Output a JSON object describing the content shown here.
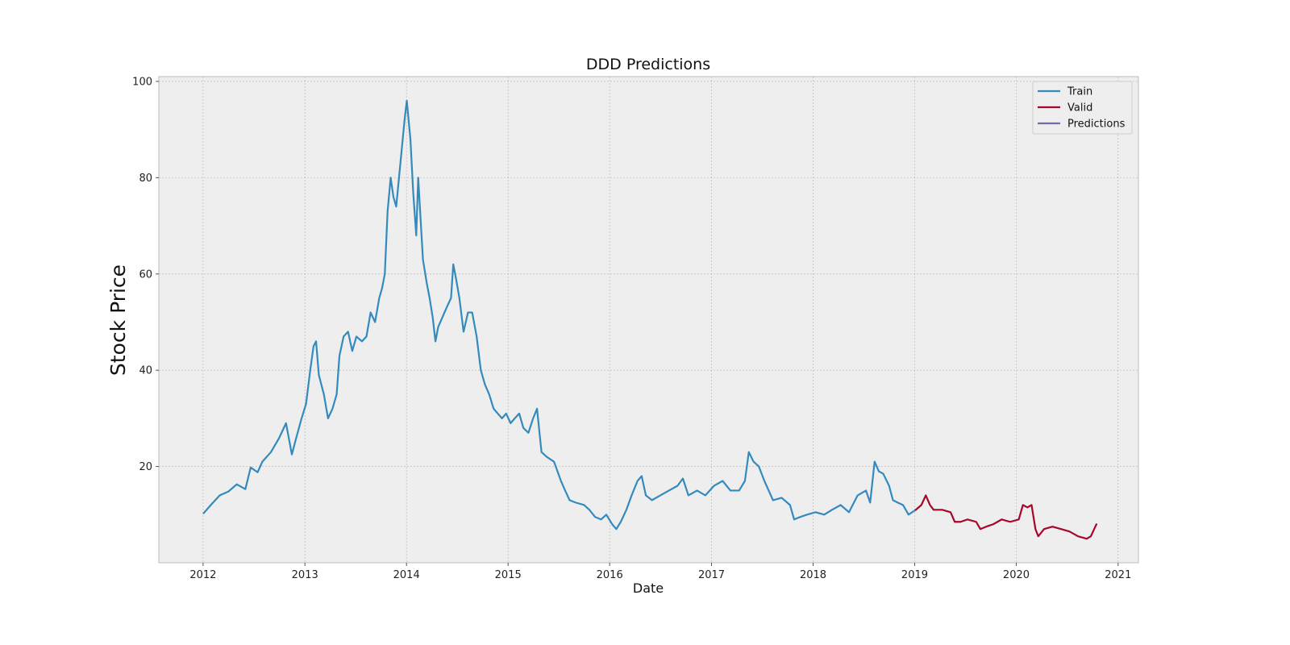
{
  "chart_data": {
    "type": "line",
    "title": "DDD Predictions",
    "xlabel": "Date",
    "ylabel": "Stock Price",
    "x_axis": "date",
    "xlim": [
      "2011-07-26",
      "2021-03-15"
    ],
    "ylim": [
      0,
      101
    ],
    "xticks": [
      "2012",
      "2013",
      "2014",
      "2015",
      "2016",
      "2017",
      "2018",
      "2019",
      "2020",
      "2021"
    ],
    "yticks": [
      20,
      40,
      60,
      80,
      100
    ],
    "grid": true,
    "legend_position": "top-right",
    "series": [
      {
        "name": "Train",
        "color": "#348abd",
        "points": [
          [
            "2012-01-03",
            10.3
          ],
          [
            "2012-02-01",
            12.2
          ],
          [
            "2012-03-01",
            14.0
          ],
          [
            "2012-04-01",
            14.8
          ],
          [
            "2012-05-01",
            16.3
          ],
          [
            "2012-06-01",
            15.3
          ],
          [
            "2012-06-20",
            19.8
          ],
          [
            "2012-07-15",
            18.8
          ],
          [
            "2012-08-01",
            21.0
          ],
          [
            "2012-09-01",
            23.0
          ],
          [
            "2012-10-01",
            26.0
          ],
          [
            "2012-10-25",
            29.0
          ],
          [
            "2012-11-15",
            22.5
          ],
          [
            "2012-12-01",
            26.0
          ],
          [
            "2012-12-20",
            30.0
          ],
          [
            "2013-01-05",
            33.0
          ],
          [
            "2013-01-20",
            40.0
          ],
          [
            "2013-02-01",
            45.0
          ],
          [
            "2013-02-10",
            46.0
          ],
          [
            "2013-02-20",
            39.0
          ],
          [
            "2013-03-10",
            35.0
          ],
          [
            "2013-03-25",
            30.0
          ],
          [
            "2013-04-10",
            32.0
          ],
          [
            "2013-04-25",
            35.0
          ],
          [
            "2013-05-05",
            43.0
          ],
          [
            "2013-05-20",
            47.0
          ],
          [
            "2013-06-05",
            48.0
          ],
          [
            "2013-06-20",
            44.0
          ],
          [
            "2013-07-05",
            47.0
          ],
          [
            "2013-07-25",
            46.0
          ],
          [
            "2013-08-10",
            47.0
          ],
          [
            "2013-08-25",
            52.0
          ],
          [
            "2013-09-10",
            50.0
          ],
          [
            "2013-09-25",
            55.0
          ],
          [
            "2013-10-05",
            57.0
          ],
          [
            "2013-10-15",
            60.0
          ],
          [
            "2013-10-25",
            73.0
          ],
          [
            "2013-11-05",
            80.0
          ],
          [
            "2013-11-15",
            76.0
          ],
          [
            "2013-11-25",
            74.0
          ],
          [
            "2013-12-10",
            83.0
          ],
          [
            "2013-12-25",
            92.0
          ],
          [
            "2014-01-02",
            96.0
          ],
          [
            "2014-01-15",
            88.0
          ],
          [
            "2014-01-25",
            77.0
          ],
          [
            "2014-02-05",
            68.0
          ],
          [
            "2014-02-12",
            80.0
          ],
          [
            "2014-02-20",
            72.0
          ],
          [
            "2014-03-01",
            63.0
          ],
          [
            "2014-03-15",
            58.0
          ],
          [
            "2014-03-25",
            55.0
          ],
          [
            "2014-04-05",
            51.0
          ],
          [
            "2014-04-15",
            46.0
          ],
          [
            "2014-04-25",
            49.0
          ],
          [
            "2014-05-10",
            51.0
          ],
          [
            "2014-05-25",
            53.0
          ],
          [
            "2014-06-10",
            55.0
          ],
          [
            "2014-06-18",
            62.0
          ],
          [
            "2014-06-28",
            59.0
          ],
          [
            "2014-07-10",
            55.0
          ],
          [
            "2014-07-25",
            48.0
          ],
          [
            "2014-08-10",
            52.0
          ],
          [
            "2014-08-25",
            52.0
          ],
          [
            "2014-09-10",
            47.0
          ],
          [
            "2014-09-25",
            40.0
          ],
          [
            "2014-10-10",
            37.0
          ],
          [
            "2014-10-25",
            35.0
          ],
          [
            "2014-11-10",
            32.0
          ],
          [
            "2014-11-25",
            31.0
          ],
          [
            "2014-12-10",
            30.0
          ],
          [
            "2014-12-25",
            31.0
          ],
          [
            "2015-01-10",
            29.0
          ],
          [
            "2015-01-25",
            30.0
          ],
          [
            "2015-02-10",
            31.0
          ],
          [
            "2015-02-25",
            28.0
          ],
          [
            "2015-03-15",
            27.0
          ],
          [
            "2015-04-01",
            30.0
          ],
          [
            "2015-04-15",
            32.0
          ],
          [
            "2015-05-01",
            23.0
          ],
          [
            "2015-05-20",
            22.0
          ],
          [
            "2015-06-15",
            21.0
          ],
          [
            "2015-07-10",
            17.0
          ],
          [
            "2015-07-25",
            15.0
          ],
          [
            "2015-08-10",
            13.0
          ],
          [
            "2015-09-01",
            12.5
          ],
          [
            "2015-10-01",
            12.0
          ],
          [
            "2015-10-20",
            11.0
          ],
          [
            "2015-11-10",
            9.5
          ],
          [
            "2015-12-01",
            9.0
          ],
          [
            "2015-12-20",
            10.0
          ],
          [
            "2016-01-10",
            8.0
          ],
          [
            "2016-01-25",
            7.0
          ],
          [
            "2016-02-10",
            8.5
          ],
          [
            "2016-03-01",
            11.0
          ],
          [
            "2016-03-20",
            14.0
          ],
          [
            "2016-04-10",
            17.0
          ],
          [
            "2016-04-25",
            18.0
          ],
          [
            "2016-05-10",
            14.0
          ],
          [
            "2016-06-01",
            13.0
          ],
          [
            "2016-07-01",
            14.0
          ],
          [
            "2016-08-01",
            15.0
          ],
          [
            "2016-09-01",
            16.0
          ],
          [
            "2016-09-20",
            17.5
          ],
          [
            "2016-10-10",
            14.0
          ],
          [
            "2016-11-10",
            15.0
          ],
          [
            "2016-12-10",
            14.0
          ],
          [
            "2017-01-10",
            16.0
          ],
          [
            "2017-02-10",
            17.0
          ],
          [
            "2017-03-10",
            15.0
          ],
          [
            "2017-04-10",
            15.0
          ],
          [
            "2017-05-01",
            17.0
          ],
          [
            "2017-05-15",
            23.0
          ],
          [
            "2017-06-01",
            21.0
          ],
          [
            "2017-06-20",
            20.0
          ],
          [
            "2017-07-10",
            17.0
          ],
          [
            "2017-08-10",
            13.0
          ],
          [
            "2017-09-10",
            13.5
          ],
          [
            "2017-10-10",
            12.0
          ],
          [
            "2017-10-25",
            9.0
          ],
          [
            "2017-11-15",
            9.5
          ],
          [
            "2017-12-10",
            10.0
          ],
          [
            "2018-01-10",
            10.5
          ],
          [
            "2018-02-10",
            10.0
          ],
          [
            "2018-03-10",
            11.0
          ],
          [
            "2018-04-10",
            12.0
          ],
          [
            "2018-05-10",
            10.5
          ],
          [
            "2018-06-10",
            14.0
          ],
          [
            "2018-07-10",
            15.0
          ],
          [
            "2018-07-25",
            12.5
          ],
          [
            "2018-08-10",
            21.0
          ],
          [
            "2018-08-25",
            19.0
          ],
          [
            "2018-09-10",
            18.5
          ],
          [
            "2018-10-01",
            16.0
          ],
          [
            "2018-10-15",
            13.0
          ],
          [
            "2018-11-01",
            12.5
          ],
          [
            "2018-11-20",
            12.0
          ],
          [
            "2018-12-10",
            10.0
          ],
          [
            "2019-01-05",
            11.0
          ]
        ]
      },
      {
        "name": "Valid",
        "color": "#a60628",
        "points": [
          [
            "2019-01-05",
            11.0
          ],
          [
            "2019-01-25",
            12.0
          ],
          [
            "2019-02-10",
            14.0
          ],
          [
            "2019-02-25",
            12.0
          ],
          [
            "2019-03-10",
            11.0
          ],
          [
            "2019-04-10",
            11.0
          ],
          [
            "2019-05-10",
            10.5
          ],
          [
            "2019-05-25",
            8.5
          ],
          [
            "2019-06-15",
            8.5
          ],
          [
            "2019-07-10",
            9.0
          ],
          [
            "2019-08-10",
            8.5
          ],
          [
            "2019-08-25",
            7.0
          ],
          [
            "2019-09-15",
            7.5
          ],
          [
            "2019-10-10",
            8.0
          ],
          [
            "2019-11-10",
            9.0
          ],
          [
            "2019-12-10",
            8.5
          ],
          [
            "2020-01-10",
            9.0
          ],
          [
            "2020-01-25",
            12.0
          ],
          [
            "2020-02-10",
            11.5
          ],
          [
            "2020-02-25",
            12.0
          ],
          [
            "2020-03-10",
            7.0
          ],
          [
            "2020-03-20",
            5.5
          ],
          [
            "2020-04-10",
            7.0
          ],
          [
            "2020-05-10",
            7.5
          ],
          [
            "2020-06-10",
            7.0
          ],
          [
            "2020-07-10",
            6.5
          ],
          [
            "2020-08-10",
            5.5
          ],
          [
            "2020-09-10",
            5.0
          ],
          [
            "2020-09-25",
            5.5
          ],
          [
            "2020-10-15",
            8.0
          ]
        ]
      },
      {
        "name": "Predictions",
        "color": "#7a68a6",
        "points": []
      }
    ]
  }
}
